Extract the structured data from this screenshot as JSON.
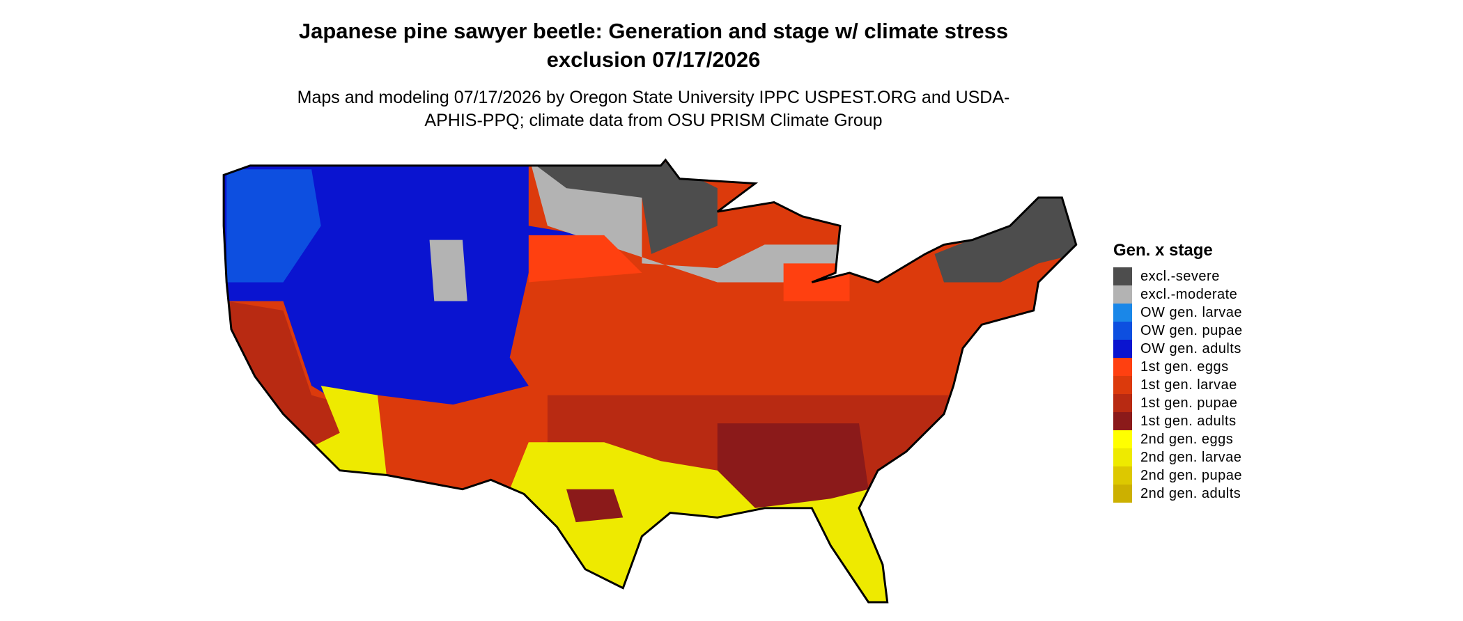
{
  "title": "Japanese pine sawyer beetle: Generation and stage w/ climate stress exclusion 07/17/2026",
  "subtitle": "Maps and modeling 07/17/2026 by Oregon State University IPPC USPEST.ORG and USDA-APHIS-PPQ; climate data from OSU PRISM Climate Group",
  "legend": {
    "title": "Gen. x stage",
    "items": [
      {
        "label": "excl.-severe",
        "color": "#4d4d4d"
      },
      {
        "label": "excl.-moderate",
        "color": "#b3b3b3"
      },
      {
        "label": "OW gen. larvae",
        "color": "#1a87e8"
      },
      {
        "label": "OW gen. pupae",
        "color": "#0d4fe0"
      },
      {
        "label": "OW gen. adults",
        "color": "#0a14d0"
      },
      {
        "label": "1st gen. eggs",
        "color": "#ff4010"
      },
      {
        "label": "1st gen. larvae",
        "color": "#dc3a0c"
      },
      {
        "label": "1st gen. pupae",
        "color": "#b82a12"
      },
      {
        "label": "1st gen. adults",
        "color": "#8b1a1a"
      },
      {
        "label": "2nd gen. eggs",
        "color": "#ffff00"
      },
      {
        "label": "2nd gen. larvae",
        "color": "#eeea00"
      },
      {
        "label": "2nd gen. pupae",
        "color": "#ddc800"
      },
      {
        "label": "2nd gen. adults",
        "color": "#ccb000"
      }
    ]
  }
}
